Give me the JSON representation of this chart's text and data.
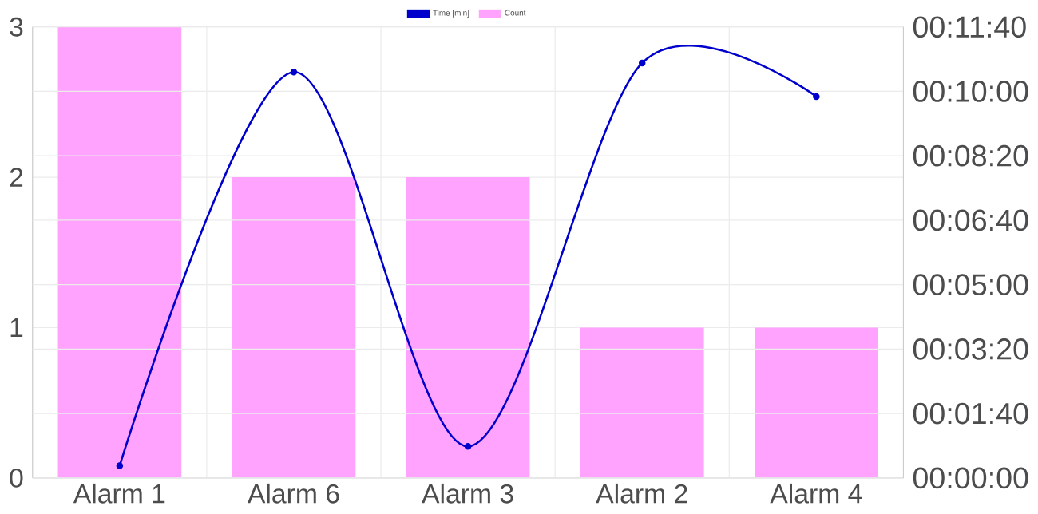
{
  "chart_data": {
    "type": "bar",
    "categories": [
      "Alarm 1",
      "Alarm 6",
      "Alarm 3",
      "Alarm 2",
      "Alarm 4"
    ],
    "series": [
      {
        "name": "Time [min]",
        "type": "line",
        "axis": "y2",
        "color": "#0000cc",
        "marker": "circle",
        "values": [
          19,
          630,
          49,
          644,
          592
        ]
      },
      {
        "name": "Count",
        "color": "#ffa3ff",
        "values": [
          3,
          2,
          2,
          1,
          1
        ]
      }
    ],
    "ylim": [
      0,
      3
    ],
    "yticks": [
      0,
      1,
      2,
      3
    ],
    "y2lim": [
      0,
      700
    ],
    "y2ticks": [
      {
        "value": 0,
        "label": "00:00:00"
      },
      {
        "value": 100,
        "label": "00:01:40"
      },
      {
        "value": 200,
        "label": "00:03:20"
      },
      {
        "value": 300,
        "label": "00:05:00"
      },
      {
        "value": 400,
        "label": "00:06:40"
      },
      {
        "value": 500,
        "label": "00:08:20"
      },
      {
        "value": 600,
        "label": "00:10:00"
      },
      {
        "value": 700,
        "label": "00:11:40"
      }
    ],
    "grid": true,
    "legend": "top"
  }
}
